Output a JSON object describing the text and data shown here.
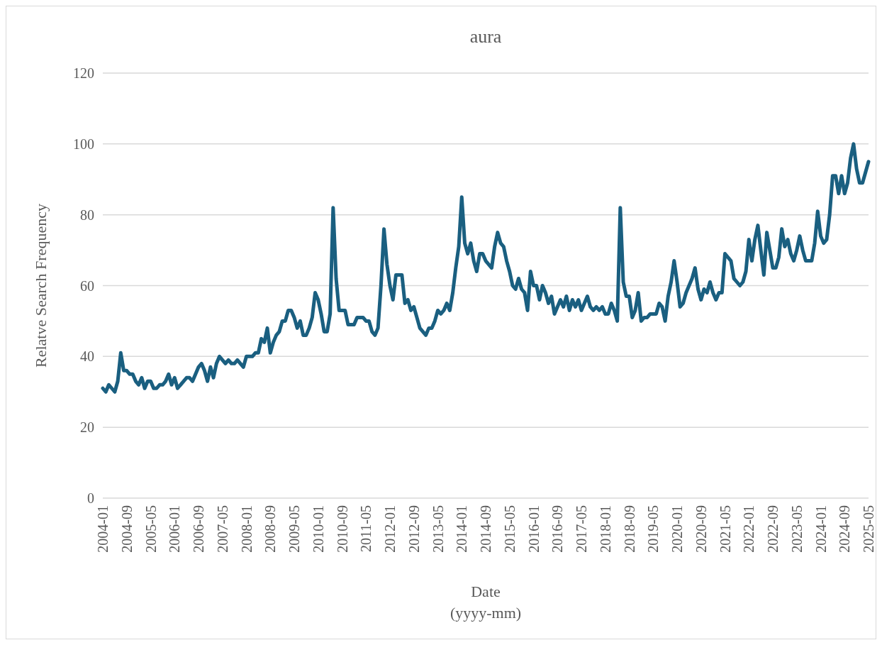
{
  "chart_data": {
    "type": "line",
    "title": "aura",
    "xlabel": "Date\n(yyyy-mm)",
    "ylabel": "Relatve Search Frequency",
    "categories": [
      "2004-01",
      null,
      null,
      null,
      null,
      null,
      null,
      null,
      "2004-09",
      null,
      null,
      null,
      null,
      null,
      null,
      null,
      "2005-05",
      null,
      null,
      null,
      null,
      null,
      null,
      null,
      "2006-01",
      null,
      null,
      null,
      null,
      null,
      null,
      null,
      "2006-09",
      null,
      null,
      null,
      null,
      null,
      null,
      null,
      "2007-05",
      null,
      null,
      null,
      null,
      null,
      null,
      null,
      "2008-01",
      null,
      null,
      null,
      null,
      null,
      null,
      null,
      "2008-09",
      null,
      null,
      null,
      null,
      null,
      null,
      null,
      "2009-05",
      null,
      null,
      null,
      null,
      null,
      null,
      null,
      "2010-01",
      null,
      null,
      null,
      null,
      null,
      null,
      null,
      "2010-09",
      null,
      null,
      null,
      null,
      null,
      null,
      null,
      "2011-05",
      null,
      null,
      null,
      null,
      null,
      null,
      null,
      "2012-01",
      null,
      null,
      null,
      null,
      null,
      null,
      null,
      "2012-09",
      null,
      null,
      null,
      null,
      null,
      null,
      null,
      "2013-05",
      null,
      null,
      null,
      null,
      null,
      null,
      null,
      "2014-01",
      null,
      null,
      null,
      null,
      null,
      null,
      null,
      "2014-09",
      null,
      null,
      null,
      null,
      null,
      null,
      null,
      "2015-05",
      null,
      null,
      null,
      null,
      null,
      null,
      null,
      "2016-01",
      null,
      null,
      null,
      null,
      null,
      null,
      null,
      "2016-09",
      null,
      null,
      null,
      null,
      null,
      null,
      null,
      "2017-05",
      null,
      null,
      null,
      null,
      null,
      null,
      null,
      "2018-01",
      null,
      null,
      null,
      null,
      null,
      null,
      null,
      "2018-09",
      null,
      null,
      null,
      null,
      null,
      null,
      null,
      "2019-05",
      null,
      null,
      null,
      null,
      null,
      null,
      null,
      "2020-01",
      null,
      null,
      null,
      null,
      null,
      null,
      null,
      "2020-09",
      null,
      null,
      null,
      null,
      null,
      null,
      null,
      "2021-05",
      null,
      null,
      null,
      null,
      null,
      null,
      null,
      "2022-01",
      null,
      null,
      null,
      null,
      null,
      null,
      null,
      "2022-09",
      null,
      null,
      null,
      null,
      null,
      null,
      null,
      "2023-05",
      null,
      null,
      null,
      null,
      null,
      null,
      null,
      "2024-01",
      null,
      null,
      null,
      null,
      null,
      null,
      null,
      "2024-09",
      null,
      null,
      null,
      null,
      null,
      null,
      null,
      "2025-05"
    ],
    "series": [
      {
        "color": "#1a5f80",
        "values": [
          31,
          30,
          32,
          31,
          30,
          33,
          41,
          36,
          36,
          35,
          35,
          33,
          32,
          34,
          31,
          33,
          33,
          31,
          31,
          32,
          32,
          33,
          35,
          32,
          34,
          31,
          32,
          33,
          34,
          34,
          33,
          35,
          37,
          38,
          36,
          33,
          37,
          34,
          38,
          40,
          39,
          38,
          39,
          38,
          38,
          39,
          38,
          37,
          40,
          40,
          40,
          41,
          41,
          45,
          44,
          48,
          41,
          44,
          46,
          47,
          50,
          50,
          53,
          53,
          51,
          48,
          50,
          46,
          46,
          48,
          51,
          58,
          56,
          52,
          47,
          47,
          52,
          82,
          62,
          53,
          53,
          53,
          49,
          49,
          49,
          51,
          51,
          51,
          50,
          50,
          47,
          46,
          48,
          60,
          76,
          66,
          60,
          56,
          63,
          63,
          63,
          55,
          56,
          53,
          54,
          51,
          48,
          47,
          46,
          48,
          48,
          50,
          53,
          52,
          53,
          55,
          53,
          58,
          65,
          71,
          85,
          72,
          69,
          72,
          67,
          64,
          69,
          69,
          67,
          66,
          65,
          71,
          75,
          72,
          71,
          67,
          64,
          60,
          59,
          62,
          59,
          58,
          53,
          64,
          60,
          60,
          56,
          60,
          58,
          55,
          57,
          52,
          54,
          56,
          54,
          57,
          53,
          56,
          54,
          56,
          53,
          55,
          57,
          54,
          53,
          54,
          53,
          54,
          52,
          52,
          55,
          53,
          50,
          82,
          61,
          57,
          57,
          51,
          53,
          58,
          50,
          51,
          51,
          52,
          52,
          52,
          55,
          54,
          50,
          57,
          61,
          67,
          61,
          54,
          55,
          58,
          60,
          62,
          65,
          59,
          56,
          59,
          58,
          61,
          58,
          56,
          58,
          58,
          69,
          68,
          67,
          62,
          61,
          60,
          61,
          64,
          73,
          67,
          73,
          77,
          70,
          63,
          75,
          70,
          65,
          65,
          68,
          76,
          71,
          73,
          69,
          67,
          70,
          74,
          70,
          67,
          67,
          67,
          72,
          81,
          74,
          72,
          73,
          80,
          91,
          91,
          86,
          91,
          86,
          89,
          96,
          100,
          93,
          89,
          89,
          92,
          95
        ]
      }
    ],
    "ylim": [
      0,
      120
    ],
    "yticks": [
      0,
      20,
      40,
      60,
      80,
      100,
      120
    ],
    "grid": "y",
    "line_style": "solid"
  }
}
